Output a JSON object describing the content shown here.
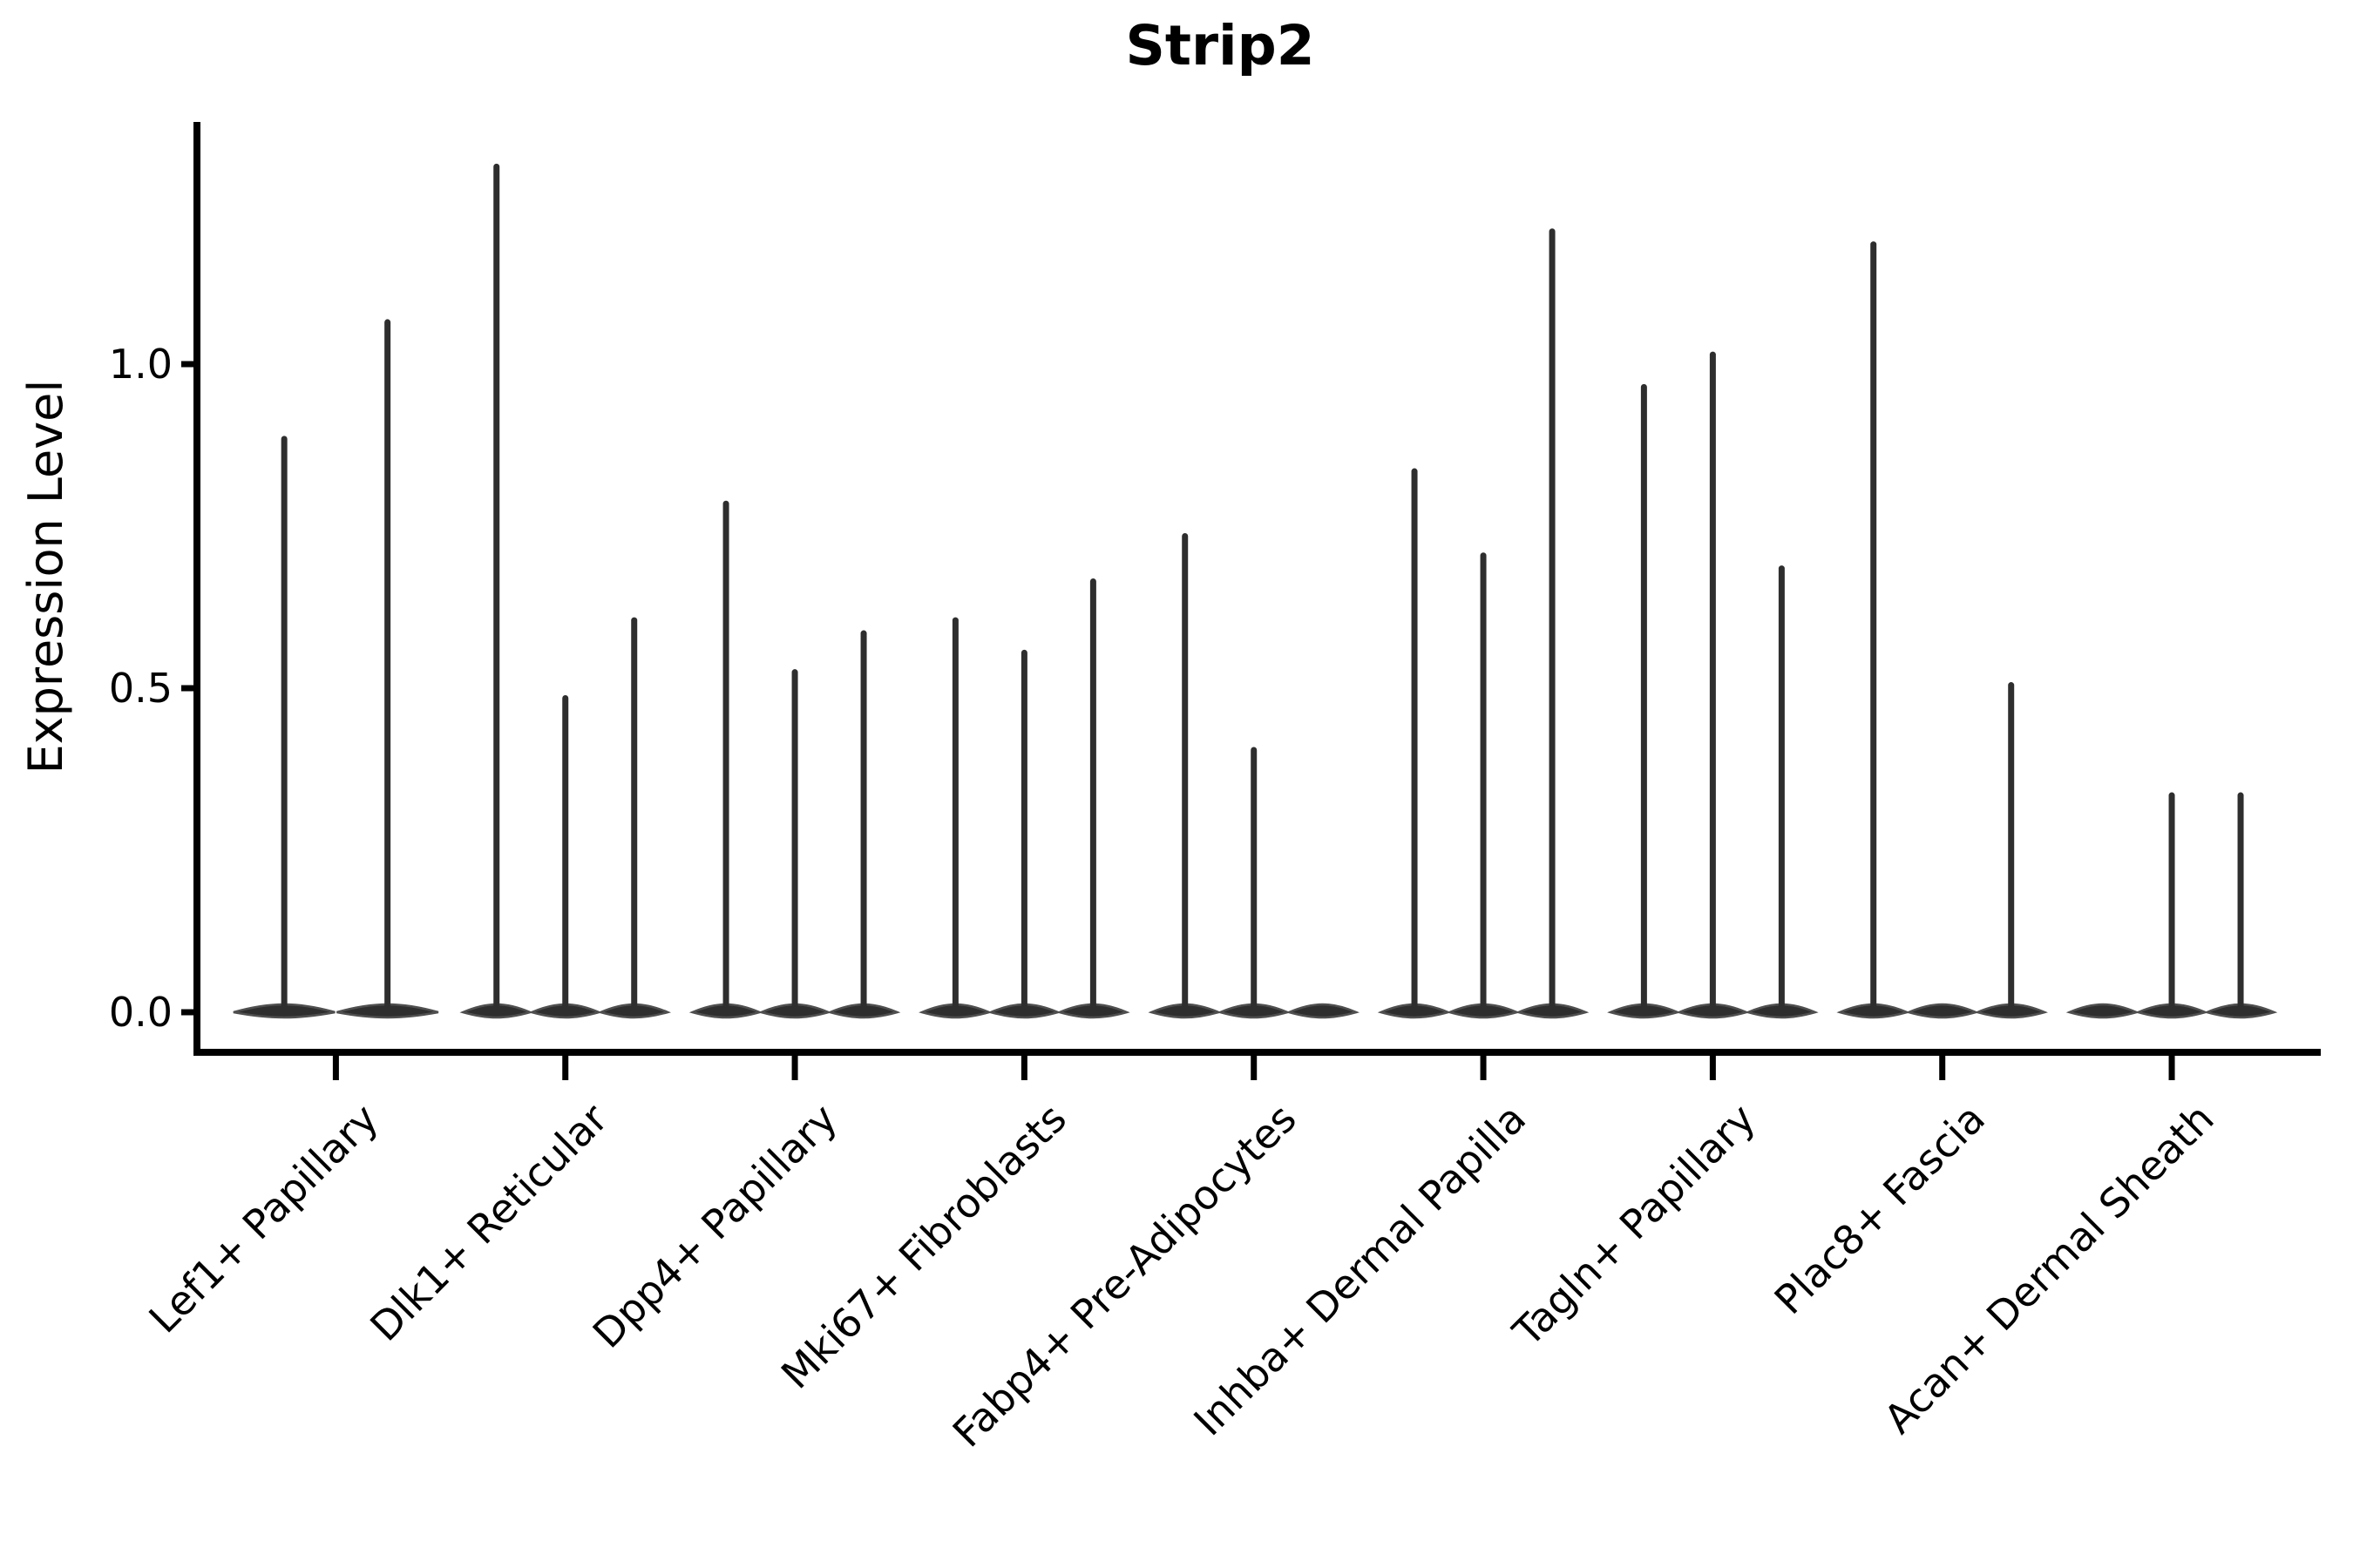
{
  "figure": {
    "background": "#ffffff"
  },
  "chart_data": {
    "type": "violin",
    "title": "Strip2",
    "ylabel": "Expression Level",
    "xlabel": "",
    "legend": "none",
    "grid": false,
    "ylim": [
      -0.06,
      1.37
    ],
    "ytick_labels": [
      "0.0",
      "0.5",
      "1.0"
    ],
    "ytick_values": [
      0.0,
      0.5,
      1.0
    ],
    "categories": [
      "Lef1+ Papillary",
      "Dlk1+ Reticular",
      "Dpp4+ Papillary",
      "Mki67+ Fibroblasts",
      "Fabp4+ Pre-Adipocytes",
      "Inhba+ Dermal Papilla",
      "Tagln+ Papillary",
      "Plac8+ Fascia",
      "Acan+ Dermal Sheath"
    ],
    "violins_note": "Each category shows 1-3 narrow violins (mass concentrated at 0 with a thin spike to the max). Value = spike top (max expression); 0 = flat violin with no spike.",
    "violins": [
      [
        0.89,
        1.07
      ],
      [
        1.31,
        0.49,
        0.61
      ],
      [
        0.79,
        0.53,
        0.59
      ],
      [
        0.61,
        0.56,
        0.67
      ],
      [
        0.74,
        0.41,
        0
      ],
      [
        0.84,
        0.71,
        1.21
      ],
      [
        0.97,
        1.02,
        0.69
      ],
      [
        1.19,
        0,
        0.51
      ],
      [
        0,
        0.34,
        0.34
      ]
    ],
    "colors": {
      "violin_fill": "#2e2e2e",
      "violin_edge": "#4f4f4f",
      "axis": "#000000",
      "text": "#000000",
      "background": "#ffffff"
    }
  }
}
